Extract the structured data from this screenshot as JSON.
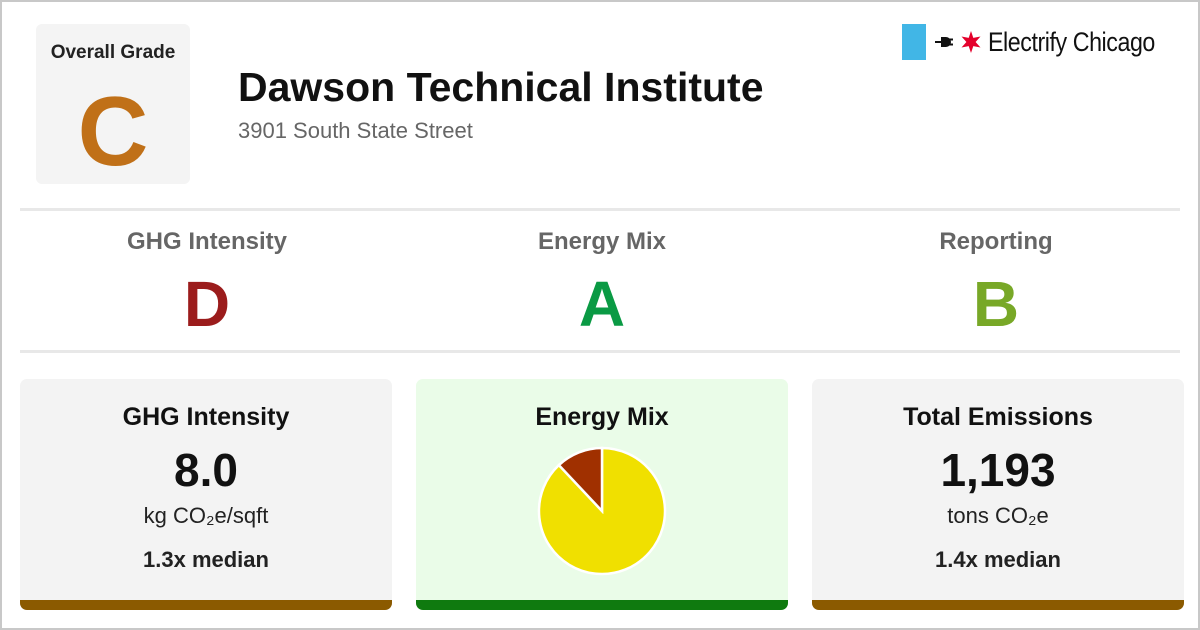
{
  "overall": {
    "label": "Overall Grade",
    "grade": "C",
    "grade_color": "#c07018"
  },
  "building": {
    "name": "Dawson Technical Institute",
    "address": "3901 South State Street"
  },
  "brand": {
    "name": "Electrify Chicago",
    "flag_color": "#41b6e6",
    "star_color": "#e4002b"
  },
  "subgrades": [
    {
      "label": "GHG Intensity",
      "grade": "D",
      "color": "#9b1c1c"
    },
    {
      "label": "Energy Mix",
      "grade": "A",
      "color": "#0a9a44"
    },
    {
      "label": "Reporting",
      "grade": "B",
      "color": "#78a827"
    }
  ],
  "cards": {
    "ghg": {
      "title": "GHG Intensity",
      "value": "8.0",
      "unit": "kg CO₂e/sqft",
      "median": "1.3x median",
      "bg": "#f3f3f3",
      "bar_color": "#8b5a00"
    },
    "energy": {
      "title": "Energy Mix",
      "bg": "#eafce8",
      "bar_color": "#0f7a0f"
    },
    "emissions": {
      "title": "Total Emissions",
      "value": "1,193",
      "unit": "tons CO₂e",
      "median": "1.4x median",
      "bg": "#f3f3f3",
      "bar_color": "#8b5a00"
    }
  },
  "chart_data": {
    "type": "pie",
    "title": "",
    "slices": [
      {
        "value": 88,
        "color": "#f0e000"
      },
      {
        "value": 12,
        "color": "#a03000"
      }
    ]
  }
}
